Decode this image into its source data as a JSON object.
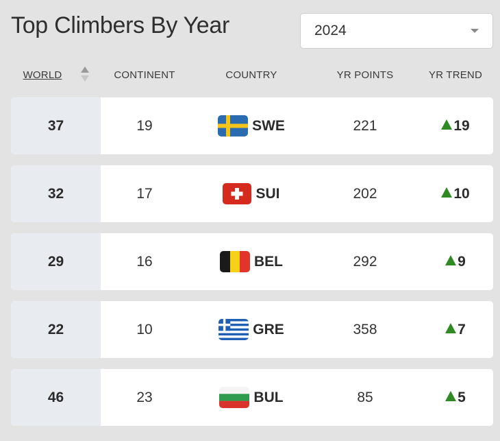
{
  "title": "Top Climbers By Year",
  "year_select": {
    "value": "2024"
  },
  "columns": {
    "world": "WORLD",
    "continent": "CONTINENT",
    "country": "COUNTRY",
    "points": "YR POINTS",
    "trend": "YR TREND"
  },
  "rows": [
    {
      "world": "37",
      "continent": "19",
      "country": "SWE",
      "flag": "sweden-flag-icon",
      "points": "221",
      "trend": "19"
    },
    {
      "world": "32",
      "continent": "17",
      "country": "SUI",
      "flag": "switzerland-flag-icon",
      "points": "202",
      "trend": "10"
    },
    {
      "world": "29",
      "continent": "16",
      "country": "BEL",
      "flag": "belgium-flag-icon",
      "points": "292",
      "trend": "9"
    },
    {
      "world": "22",
      "continent": "10",
      "country": "GRE",
      "flag": "greece-flag-icon",
      "points": "358",
      "trend": "7"
    },
    {
      "world": "46",
      "continent": "23",
      "country": "BUL",
      "flag": "bulgaria-flag-icon",
      "points": "85",
      "trend": "5"
    }
  ],
  "colors": {
    "trend_up": "#2f8a24",
    "world_cell_bg": "#e8ecf0",
    "page_bg": "#e3e3e3"
  }
}
